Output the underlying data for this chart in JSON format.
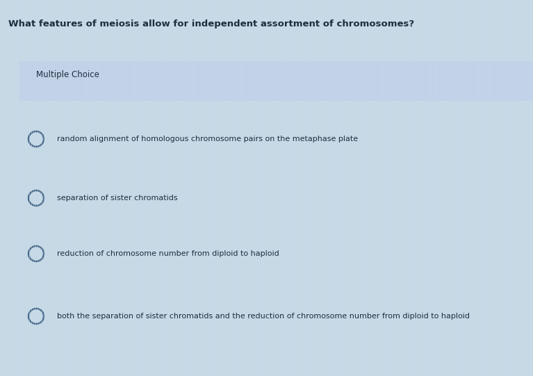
{
  "question": "What features of meiosis allow for independent assortment of chromosomes?",
  "label": "Multiple Choice",
  "choices": [
    "random alignment of homologous chromosome pairs on the metaphase plate",
    "separation of sister chromatids",
    "reduction of chromosome number from diploid to haploid",
    "both the separation of sister chromatids and the reduction of chromosome number from diploid to haploid"
  ],
  "bg_color": "#c5d8e5",
  "stripe_color": "#cfe0ec",
  "label_band_color": "#c0cfe8",
  "question_color": "#1e2d3d",
  "label_color": "#1e2d3d",
  "choice_color": "#1e2d3d",
  "circle_edge_color": "#4a6a8a",
  "figwidth": 7.67,
  "figheight": 5.41,
  "dpi": 100
}
